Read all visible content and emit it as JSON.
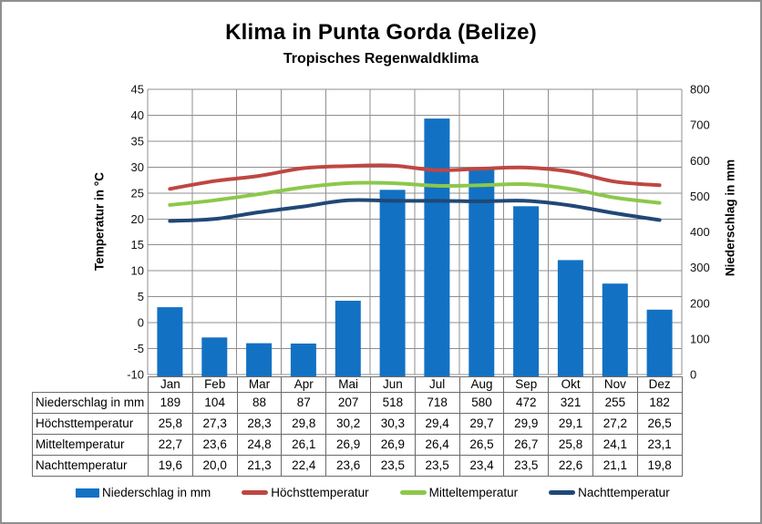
{
  "page": {
    "title": "Klima in Punta Gorda (Belize)",
    "subtitle": "Tropisches Regenwaldklima"
  },
  "chart_data": {
    "type": "combo-bar-line",
    "categories": [
      "Jan",
      "Feb",
      "Mar",
      "Apr",
      "Mai",
      "Jun",
      "Jul",
      "Aug",
      "Sep",
      "Okt",
      "Nov",
      "Dez"
    ],
    "series": [
      {
        "name": "Niederschlag in mm",
        "type": "bar",
        "axis": "right",
        "color": "#1371C3",
        "values": [
          189,
          104,
          88,
          87,
          207,
          518,
          718,
          580,
          472,
          321,
          255,
          182
        ]
      },
      {
        "name": "Höchsttemperatur",
        "type": "line",
        "axis": "left",
        "color": "#BE4742",
        "values": [
          25.8,
          27.3,
          28.3,
          29.8,
          30.2,
          30.3,
          29.4,
          29.7,
          29.9,
          29.1,
          27.2,
          26.5
        ]
      },
      {
        "name": "Mitteltemperatur",
        "type": "line",
        "axis": "left",
        "color": "#8CC84B",
        "values": [
          22.7,
          23.6,
          24.8,
          26.1,
          26.9,
          26.9,
          26.4,
          26.5,
          26.7,
          25.8,
          24.1,
          23.1
        ]
      },
      {
        "name": "Nachttemperatur",
        "type": "line",
        "axis": "left",
        "color": "#204876",
        "values": [
          19.6,
          20.0,
          21.3,
          22.4,
          23.6,
          23.5,
          23.5,
          23.4,
          23.5,
          22.6,
          21.1,
          19.8
        ]
      }
    ],
    "y_left": {
      "label": "Temperatur in °C",
      "min": -10,
      "max": 45,
      "step": 5
    },
    "y_right": {
      "label": "Niederschlag in mm",
      "min": 0,
      "max": 800,
      "step": 100
    },
    "grid": true,
    "legend_position": "bottom"
  },
  "table": {
    "rows": [
      {
        "label": "Niederschlag in mm",
        "cells": [
          "189",
          "104",
          "88",
          "87",
          "207",
          "518",
          "718",
          "580",
          "472",
          "321",
          "255",
          "182"
        ]
      },
      {
        "label": "Höchsttemperatur",
        "cells": [
          "25,8",
          "27,3",
          "28,3",
          "29,8",
          "30,2",
          "30,3",
          "29,4",
          "29,7",
          "29,9",
          "29,1",
          "27,2",
          "26,5"
        ]
      },
      {
        "label": "Mitteltemperatur",
        "cells": [
          "22,7",
          "23,6",
          "24,8",
          "26,1",
          "26,9",
          "26,9",
          "26,4",
          "26,5",
          "26,7",
          "25,8",
          "24,1",
          "23,1"
        ]
      },
      {
        "label": "Nachttemperatur",
        "cells": [
          "19,6",
          "20,0",
          "21,3",
          "22,4",
          "23,6",
          "23,5",
          "23,5",
          "23,4",
          "23,5",
          "22,6",
          "21,1",
          "19,8"
        ]
      }
    ]
  }
}
